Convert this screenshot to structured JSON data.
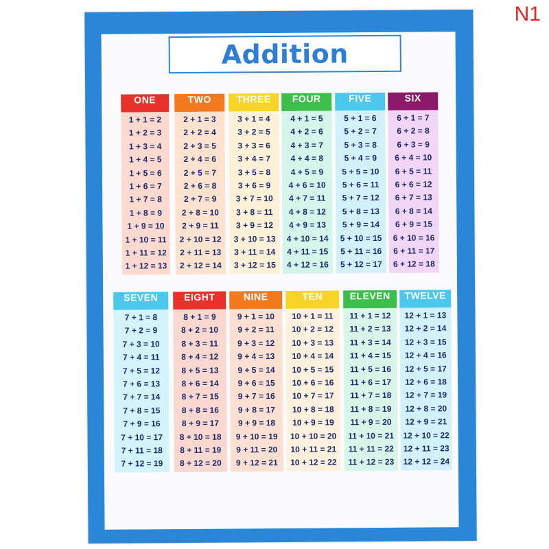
{
  "corner_label": "N1",
  "title": "Addition",
  "columns": [
    {
      "label": "ONE",
      "header_color": "#e8312a",
      "body_color": "#fdd9d0",
      "equations": [
        "1 + 1 = 2",
        "1 + 2 = 3",
        "1 + 3 = 4",
        "1 + 4 = 5",
        "1 + 5 = 6",
        "1 + 6 = 7",
        "1 + 7 = 8",
        "1 + 8 = 9",
        "1 + 9 = 10",
        "1 + 10 = 11",
        "1 + 11 = 12",
        "1 + 12 = 13"
      ]
    },
    {
      "label": "TWO",
      "header_color": "#f47a20",
      "body_color": "#fde2cf",
      "equations": [
        "2 + 1 = 3",
        "2 + 2 = 4",
        "2 + 3 = 5",
        "2 + 4 = 6",
        "2 + 5 = 7",
        "2 + 6 = 8",
        "2 + 7 = 9",
        "2 + 8 = 10",
        "2 + 9 = 11",
        "2 + 10 = 12",
        "2 + 11 = 13",
        "2 + 12 = 14"
      ]
    },
    {
      "label": "THREE",
      "header_color": "#f9d52a",
      "body_color": "#fff0d8",
      "equations": [
        "3 + 1 = 4",
        "3 + 2 = 5",
        "3 + 3 = 6",
        "3 + 4 = 7",
        "3 + 5 = 8",
        "3 + 6 = 9",
        "3 + 7 = 10",
        "3 + 8 = 11",
        "3 + 9 = 12",
        "3 + 10 = 13",
        "3 + 11 = 14",
        "3 + 12 = 15"
      ]
    },
    {
      "label": "FOUR",
      "header_color": "#3cbf4a",
      "body_color": "#d6f5ea",
      "equations": [
        "4 + 1 = 5",
        "4 + 2 = 6",
        "4 + 3 = 7",
        "4 + 4 = 8",
        "4 + 5 = 9",
        "4 + 6 = 10",
        "4 + 7 = 11",
        "4 + 8 = 12",
        "4 + 9 = 13",
        "4 + 10 = 14",
        "4 + 11 = 15",
        "4 + 12 = 16"
      ]
    },
    {
      "label": "FIVE",
      "header_color": "#4cc8ef",
      "body_color": "#d3f1fb",
      "equations": [
        "5 + 1 = 6",
        "5 + 2 = 7",
        "5 + 3 = 8",
        "5 + 4 = 9",
        "5 + 5 = 10",
        "5 + 6 = 11",
        "5 + 7 = 12",
        "5 + 8 = 13",
        "5 + 9 = 14",
        "5 + 10 = 15",
        "5 + 11 = 16",
        "5 + 12 = 17"
      ]
    },
    {
      "label": "SIX",
      "header_color": "#8b1a6b",
      "body_color": "#f2d6f7",
      "equations": [
        "6 + 1 = 7",
        "6 + 2 = 8",
        "6 + 3 = 9",
        "6 + 4 = 10",
        "6 + 5 = 11",
        "6 + 6 = 12",
        "6 + 7 = 13",
        "6 + 8 = 14",
        "6 + 9 = 15",
        "6 + 10 = 16",
        "6 + 11 = 17",
        "6 + 12 = 18"
      ]
    },
    {
      "label": "SEVEN",
      "header_color": "#4cc8ef",
      "body_color": "#d3f4fb",
      "equations": [
        "7 + 1 = 8",
        "7 + 2 = 9",
        "7 + 3 = 10",
        "7 + 4 = 11",
        "7 + 5 = 12",
        "7 + 6 = 13",
        "7 + 7 = 14",
        "7 + 8 = 15",
        "7 + 9 = 16",
        "7 + 10 = 17",
        "7 + 11 = 18",
        "7 + 12 = 19"
      ]
    },
    {
      "label": "EIGHT",
      "header_color": "#e8312a",
      "body_color": "#fbd8cf",
      "equations": [
        "8 + 1 = 9",
        "8 + 2 = 10",
        "8 + 3 = 11",
        "8 + 4 = 12",
        "8 + 5 = 13",
        "8 + 6 = 14",
        "8 + 7 = 15",
        "8 + 8 = 16",
        "8 + 9 = 17",
        "8 + 10 = 18",
        "8 + 11 = 19",
        "8 + 12 = 20"
      ]
    },
    {
      "label": "NINE",
      "header_color": "#f47a20",
      "body_color": "#fde0d2",
      "equations": [
        "9 + 1 = 10",
        "9 + 2 = 11",
        "9 + 3 = 12",
        "9 + 4 = 13",
        "9 + 5 = 14",
        "9 + 6 = 15",
        "9 + 7 = 16",
        "9 + 8 = 17",
        "9 + 9 = 18",
        "9 + 10 = 19",
        "9 + 11 = 20",
        "9 + 12 = 21"
      ]
    },
    {
      "label": "TEN",
      "header_color": "#f9d52a",
      "body_color": "#fff1de",
      "equations": [
        "10 + 1 = 11",
        "10 + 2 = 12",
        "10 + 3 = 13",
        "10 + 4 = 14",
        "10 + 5 = 15",
        "10 + 6 = 16",
        "10 + 7 = 17",
        "10 + 8 = 18",
        "10 + 9 = 19",
        "10 + 10 = 20",
        "10 + 11 = 21",
        "10 + 12 = 22"
      ]
    },
    {
      "label": "ELEVEN",
      "header_color": "#3cbf4a",
      "body_color": "#d8f5ea",
      "equations": [
        "11 + 1 = 12",
        "11 + 2 = 13",
        "11 + 3 = 14",
        "11 + 4 = 15",
        "11 + 5 = 16",
        "11 + 6 = 17",
        "11 + 7 = 18",
        "11 + 8 = 19",
        "11 + 9 = 20",
        "11 + 10 = 21",
        "11 + 11 = 22",
        "11 + 12 = 23"
      ]
    },
    {
      "label": "TWELVE",
      "header_color": "#4cc8ef",
      "body_color": "#d3f1fb",
      "equations": [
        "12 + 1 = 13",
        "12 + 2 = 14",
        "12 + 3 = 15",
        "12 + 4 = 16",
        "12 + 5 = 17",
        "12 + 6 = 18",
        "12 + 7 = 19",
        "12 + 8 = 20",
        "12 + 9 = 21",
        "12 + 10 = 22",
        "12 + 11 = 23",
        "12 + 12 = 24"
      ]
    }
  ]
}
